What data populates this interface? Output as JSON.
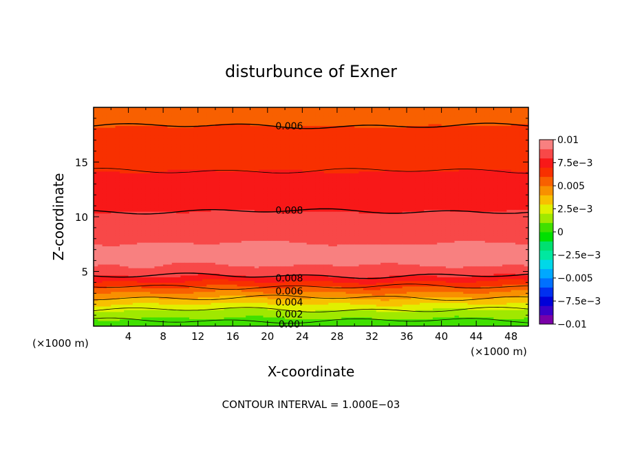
{
  "chart_data": {
    "type": "heatmap",
    "title": "disturbunce of Exner",
    "xlabel": "X-coordinate",
    "ylabel": "Z-coordinate",
    "x_unit_left": "(×1000 m)",
    "x_unit_right": "(×1000 m)",
    "xlim": [
      0,
      50
    ],
    "ylim": [
      0,
      20
    ],
    "x_ticks": [
      {
        "value": 4,
        "label": "4"
      },
      {
        "value": 8,
        "label": "8"
      },
      {
        "value": 12,
        "label": "12"
      },
      {
        "value": 16,
        "label": "16"
      },
      {
        "value": 20,
        "label": "20"
      },
      {
        "value": 24,
        "label": "24"
      },
      {
        "value": 28,
        "label": "28"
      },
      {
        "value": 32,
        "label": "32"
      },
      {
        "value": 36,
        "label": "36"
      },
      {
        "value": 40,
        "label": "40"
      },
      {
        "value": 44,
        "label": "44"
      },
      {
        "value": 48,
        "label": "48"
      }
    ],
    "y_ticks": [
      {
        "value": 5,
        "label": "5"
      },
      {
        "value": 10,
        "label": "10"
      },
      {
        "value": 15,
        "label": "15"
      }
    ],
    "footer": "CONTOUR INTERVAL = 1.000E−03",
    "colorbar": {
      "range": [
        -0.01,
        0.01
      ],
      "labels": [
        {
          "value": 0.01,
          "label": "0.01"
        },
        {
          "value": 0.0075,
          "label": "7.5e−3"
        },
        {
          "value": 0.005,
          "label": "0.005"
        },
        {
          "value": 0.0025,
          "label": "2.5e−3"
        },
        {
          "value": 0,
          "label": "0"
        },
        {
          "value": -0.0025,
          "label": "−2.5e−3"
        },
        {
          "value": -0.005,
          "label": "−0.005"
        },
        {
          "value": -0.0075,
          "label": "−7.5e−3"
        },
        {
          "value": -0.01,
          "label": "−0.01"
        }
      ],
      "colors": [
        "#7a00a8",
        "#3a00c8",
        "#0000d8",
        "#0030f0",
        "#0070ff",
        "#00a8ff",
        "#00d8e8",
        "#00e8a0",
        "#00e070",
        "#00e000",
        "#40e000",
        "#a0e800",
        "#e0f000",
        "#f8c000",
        "#f89000",
        "#f86000",
        "#f83000",
        "#f81818",
        "#f84848",
        "#f88080"
      ]
    },
    "contour_levels": [
      {
        "z": 18.3,
        "value": "0.006"
      },
      {
        "z": 14.2,
        "value": "0.007"
      },
      {
        "z": 10.5,
        "value": "0.008"
      },
      {
        "z": 4.6,
        "value": "0.008"
      },
      {
        "z": 3.6,
        "value": "0.006"
      },
      {
        "z": 2.6,
        "value": "0.004"
      },
      {
        "z": 1.5,
        "value": "0.002"
      },
      {
        "z": 0.5,
        "value": "0.00"
      }
    ],
    "contour_labels": [
      {
        "x": 22.5,
        "z": 18.3,
        "label": "0.006"
      },
      {
        "x": 22.5,
        "z": 10.6,
        "label": "0.008"
      },
      {
        "x": 22.5,
        "z": 4.4,
        "label": "0.008"
      },
      {
        "x": 22.5,
        "z": 3.2,
        "label": "0.006"
      },
      {
        "x": 22.5,
        "z": 2.2,
        "label": "0.004"
      },
      {
        "x": 22.5,
        "z": 1.1,
        "label": "0.002"
      },
      {
        "x": 22.5,
        "z": 0.2,
        "label": "0.00"
      }
    ]
  }
}
